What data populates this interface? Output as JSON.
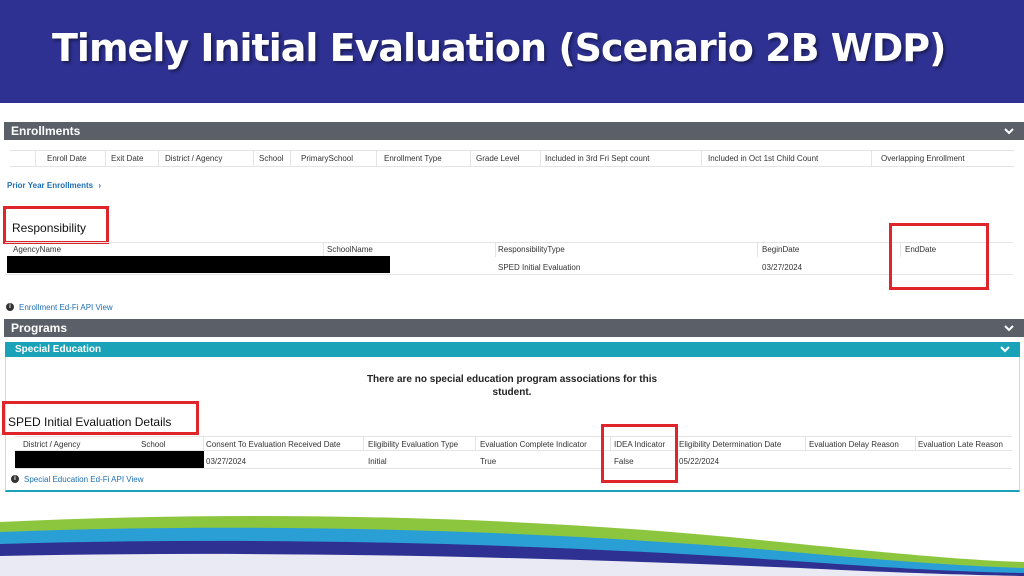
{
  "title": "Timely Initial Evaluation (Scenario 2B WDP)",
  "enrollments": {
    "header": "Enrollments",
    "columns": [
      "Enroll Date",
      "Exit Date",
      "District / Agency",
      "School",
      "PrimarySchool",
      "Enrollment Type",
      "Grade Level",
      "Included in 3rd Fri Sept count",
      "Included in Oct 1st Child Count",
      "Overlapping Enrollment"
    ],
    "prior_link": "Prior Year Enrollments"
  },
  "responsibility": {
    "heading": "Responsibility",
    "columns": [
      "AgencyName",
      "SchoolName",
      "ResponsibilityType",
      "BeginDate",
      "EndDate"
    ],
    "row": {
      "agency": "",
      "school": "",
      "type": "SPED Initial Evaluation",
      "begin": "03/27/2024",
      "end": ""
    },
    "api_link": "Enrollment Ed-Fi API View"
  },
  "programs": {
    "header": "Programs",
    "special_education": "Special Education",
    "no_data_message": "There are no special education program associations for this student."
  },
  "sped_details": {
    "heading": "SPED Initial Evaluation Details",
    "columns": [
      "District / Agency",
      "School",
      "Consent To Evaluation Received Date",
      "Eligibility Evaluation Type",
      "Evaluation Complete Indicator",
      "IDEA Indicator",
      "Eligibility Determination Date",
      "Evaluation Delay Reason",
      "Evaluation Late Reason"
    ],
    "row": {
      "consent": "03/27/2024",
      "eval_type": "Initial",
      "complete": "True",
      "idea": "False",
      "determination": "05/22/2024"
    },
    "api_link": "Special Education Ed-Fi API View"
  },
  "colors": {
    "title_band": "#2e3192",
    "section_bar": "#5b6068",
    "teal": "#1aa3b8",
    "highlight_red": "#e0252a"
  }
}
